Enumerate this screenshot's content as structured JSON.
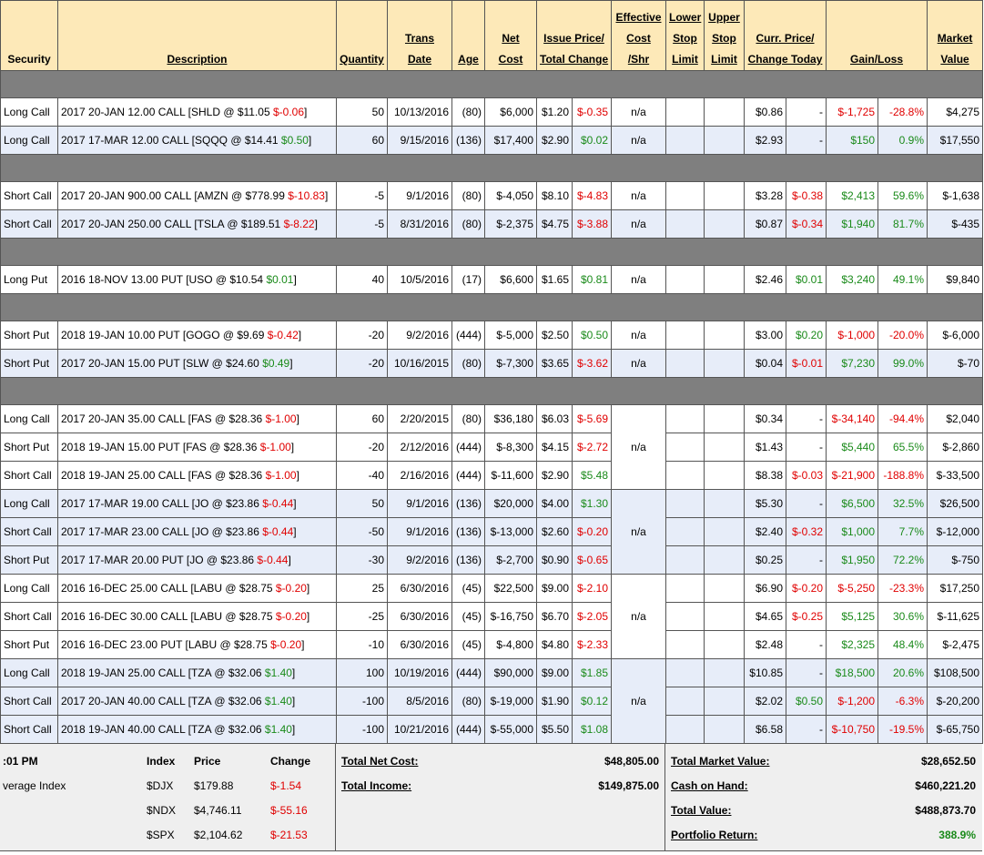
{
  "header": [
    {
      "lines": [
        "Security"
      ]
    },
    {
      "lines": [
        "Description"
      ]
    },
    {
      "lines": [
        "Quantity"
      ]
    },
    {
      "lines": [
        "Trans",
        "Date"
      ]
    },
    {
      "lines": [
        "Age"
      ]
    },
    {
      "lines": [
        "Net",
        "Cost"
      ]
    },
    {
      "lines": [
        "Issue Price/",
        "Total Change"
      ]
    },
    {
      "lines": [
        "Effective",
        "Cost",
        "/Shr"
      ]
    },
    {
      "lines": [
        "Lower",
        "Stop",
        "Limit"
      ]
    },
    {
      "lines": [
        "Upper",
        "Stop",
        "Limit"
      ]
    },
    {
      "lines": [
        "Curr. Price/",
        "Change Today"
      ]
    },
    {
      "lines": [
        "Gain/Loss"
      ]
    },
    {
      "lines": [
        "Market",
        "Value"
      ]
    }
  ],
  "sections": [
    {
      "rows": [
        {
          "security": "Long Call",
          "description": [
            "2017 20-JAN 12.00 CALL [SHLD @ $11.05",
            "$-0.06",
            "]"
          ],
          "quantity": "50",
          "date": "10/13/2016",
          "age": "(80)",
          "net_cost": "$6,000",
          "issue_price": "$1.20",
          "total_change": "$-0.35",
          "effective_cost": "n/a",
          "price": "$0.86",
          "change_today": "-",
          "gain_loss": "$-1,725",
          "gain_pct": "-28.8%",
          "market_value": "$4,275",
          "background": "#ffffff"
        },
        {
          "security": "Long Call",
          "description": [
            "2017 17-MAR 12.00 CALL [SQQQ @ $14.41",
            "$0.50",
            "]"
          ],
          "quantity": "60",
          "date": "9/15/2016",
          "age": "(136)",
          "net_cost": "$17,400",
          "issue_price": "$2.90",
          "total_change": "$0.02",
          "effective_cost": "n/a",
          "price": "$2.93",
          "change_today": "-",
          "gain_loss": "$150",
          "gain_pct": "0.9%",
          "market_value": "$17,550",
          "background": "#e7edf9"
        }
      ]
    },
    {
      "rows": [
        {
          "security": "Short Call",
          "description": [
            "2017 20-JAN 900.00 CALL [AMZN @ $778.99",
            "$-10.83",
            "]"
          ],
          "quantity": "-5",
          "date": "9/1/2016",
          "age": "(80)",
          "net_cost": "$-4,050",
          "issue_price": "$8.10",
          "total_change": "$-4.83",
          "effective_cost": "n/a",
          "price": "$3.28",
          "change_today": "$-0.38",
          "gain_loss": "$2,413",
          "gain_pct": "59.6%",
          "market_value": "$-1,638",
          "background": "#ffffff"
        },
        {
          "security": "Short Call",
          "description": [
            "2017 20-JAN 250.00 CALL [TSLA @ $189.51",
            "$-8.22",
            "]"
          ],
          "quantity": "-5",
          "date": "8/31/2016",
          "age": "(80)",
          "net_cost": "$-2,375",
          "issue_price": "$4.75",
          "total_change": "$-3.88",
          "effective_cost": "n/a",
          "price": "$0.87",
          "change_today": "$-0.34",
          "gain_loss": "$1,940",
          "gain_pct": "81.7%",
          "market_value": "$-435",
          "background": "#e7edf9"
        }
      ]
    },
    {
      "rows": [
        {
          "security": "Long Put",
          "description": [
            "2016 18-NOV 13.00 PUT [USO @ $10.54",
            "$0.01",
            "]"
          ],
          "quantity": "40",
          "date": "10/5/2016",
          "age": "(17)",
          "net_cost": "$6,600",
          "issue_price": "$1.65",
          "total_change": "$0.81",
          "effective_cost": "n/a",
          "price": "$2.46",
          "change_today": "$0.01",
          "gain_loss": "$3,240",
          "gain_pct": "49.1%",
          "market_value": "$9,840",
          "background": "#ffffff"
        }
      ]
    },
    {
      "rows": [
        {
          "security": "Short Put",
          "description": [
            "2018 19-JAN 10.00 PUT [GOGO @ $9.69",
            "$-0.42",
            "]"
          ],
          "quantity": "-20",
          "date": "9/2/2016",
          "age": "(444)",
          "net_cost": "$-5,000",
          "issue_price": "$2.50",
          "total_change": "$0.50",
          "effective_cost": "n/a",
          "price": "$3.00",
          "change_today": "$0.20",
          "gain_loss": "$-1,000",
          "gain_pct": "-20.0%",
          "market_value": "$-6,000",
          "background": "#ffffff"
        },
        {
          "security": "Short Put",
          "description": [
            "2017 20-JAN 15.00 PUT [SLW @ $24.60",
            "$0.49",
            "]"
          ],
          "quantity": "-20",
          "date": "10/16/2015",
          "age": "(80)",
          "net_cost": "$-7,300",
          "issue_price": "$3.65",
          "total_change": "$-3.62",
          "effective_cost": "n/a",
          "price": "$0.04",
          "change_today": "$-0.01",
          "gain_loss": "$7,230",
          "gain_pct": "99.0%",
          "market_value": "$-70",
          "background": "#e7edf9"
        }
      ]
    },
    {
      "rows": [
        {
          "security": "Long Call",
          "description": [
            "2017 20-JAN 35.00 CALL [FAS @ $28.36",
            "$-1.00",
            "]"
          ],
          "quantity": "60",
          "date": "2/20/2015",
          "age": "(80)",
          "net_cost": "$36,180",
          "issue_price": "$6.03",
          "total_change": "$-5.69",
          "effective_cost": "n/a",
          "price": "$0.34",
          "change_today": "-",
          "gain_loss": "$-34,140",
          "gain_pct": "-94.4%",
          "market_value": "$2,040",
          "background": "#ffffff"
        },
        {
          "security": "Short Put",
          "description": [
            "2018 19-JAN 15.00 PUT [FAS @ $28.36",
            "$-1.00",
            "]"
          ],
          "quantity": "-20",
          "date": "2/12/2016",
          "age": "(444)",
          "net_cost": "$-8,300",
          "issue_price": "$4.15",
          "total_change": "$-2.72",
          "price": "$1.43",
          "change_today": "-",
          "gain_loss": "$5,440",
          "gain_pct": "65.5%",
          "market_value": "$-2,860",
          "background": "#ffffff"
        },
        {
          "security": "Short Call",
          "description": [
            "2018 19-JAN 25.00 CALL [FAS @ $28.36",
            "$-1.00",
            "]"
          ],
          "quantity": "-40",
          "date": "2/16/2016",
          "age": "(444)",
          "net_cost": "$-11,600",
          "issue_price": "$2.90",
          "total_change": "$5.48",
          "price": "$8.38",
          "change_today": "$-0.03",
          "gain_loss": "$-21,900",
          "gain_pct": "-188.8%",
          "market_value": "$-33,500",
          "background": "#ffffff"
        },
        {
          "security": "Long Call",
          "description": [
            "2017 17-MAR 19.00 CALL [JO @ $23.86",
            "$-0.44",
            "]"
          ],
          "quantity": "50",
          "date": "9/1/2016",
          "age": "(136)",
          "net_cost": "$20,000",
          "issue_price": "$4.00",
          "total_change": "$1.30",
          "effective_cost": "n/a",
          "price": "$5.30",
          "change_today": "-",
          "gain_loss": "$6,500",
          "gain_pct": "32.5%",
          "market_value": "$26,500",
          "background": "#e7edf9"
        },
        {
          "security": "Short Call",
          "description": [
            "2017 17-MAR 23.00 CALL [JO @ $23.86",
            "$-0.44",
            "]"
          ],
          "quantity": "-50",
          "date": "9/1/2016",
          "age": "(136)",
          "net_cost": "$-13,000",
          "issue_price": "$2.60",
          "total_change": "$-0.20",
          "price": "$2.40",
          "change_today": "$-0.32",
          "gain_loss": "$1,000",
          "gain_pct": "7.7%",
          "market_value": "$-12,000",
          "background": "#e7edf9"
        },
        {
          "security": "Short Put",
          "description": [
            "2017 17-MAR 20.00 PUT [JO @ $23.86",
            "$-0.44",
            "]"
          ],
          "quantity": "-30",
          "date": "9/2/2016",
          "age": "(136)",
          "net_cost": "$-2,700",
          "issue_price": "$0.90",
          "total_change": "$-0.65",
          "price": "$0.25",
          "change_today": "-",
          "gain_loss": "$1,950",
          "gain_pct": "72.2%",
          "market_value": "$-750",
          "background": "#e7edf9"
        },
        {
          "security": "Long Call",
          "description": [
            "2016 16-DEC 25.00 CALL [LABU @ $28.75",
            "$-0.20",
            "]"
          ],
          "quantity": "25",
          "date": "6/30/2016",
          "age": "(45)",
          "net_cost": "$22,500",
          "issue_price": "$9.00",
          "total_change": "$-2.10",
          "effective_cost": "n/a",
          "price": "$6.90",
          "change_today": "$-0.20",
          "gain_loss": "$-5,250",
          "gain_pct": "-23.3%",
          "market_value": "$17,250",
          "background": "#ffffff"
        },
        {
          "security": "Short Call",
          "description": [
            "2016 16-DEC 30.00 CALL [LABU @ $28.75",
            "$-0.20",
            "]"
          ],
          "quantity": "-25",
          "date": "6/30/2016",
          "age": "(45)",
          "net_cost": "$-16,750",
          "issue_price": "$6.70",
          "total_change": "$-2.05",
          "price": "$4.65",
          "change_today": "$-0.25",
          "gain_loss": "$5,125",
          "gain_pct": "30.6%",
          "market_value": "$-11,625",
          "background": "#ffffff"
        },
        {
          "security": "Short Put",
          "description": [
            "2016 16-DEC 23.00 PUT [LABU @ $28.75",
            "$-0.20",
            "]"
          ],
          "quantity": "-10",
          "date": "6/30/2016",
          "age": "(45)",
          "net_cost": "$-4,800",
          "issue_price": "$4.80",
          "total_change": "$-2.33",
          "price": "$2.48",
          "change_today": "-",
          "gain_loss": "$2,325",
          "gain_pct": "48.4%",
          "market_value": "$-2,475",
          "background": "#ffffff"
        },
        {
          "security": "Long Call",
          "description": [
            "2018 19-JAN 25.00 CALL [TZA @ $32.06",
            "$1.40",
            "]"
          ],
          "quantity": "100",
          "date": "10/19/2016",
          "age": "(444)",
          "net_cost": "$90,000",
          "issue_price": "$9.00",
          "total_change": "$1.85",
          "effective_cost": "n/a",
          "price": "$10.85",
          "change_today": "-",
          "gain_loss": "$18,500",
          "gain_pct": "20.6%",
          "market_value": "$108,500",
          "background": "#e7edf9"
        },
        {
          "security": "Short Call",
          "description": [
            "2017 20-JAN 40.00 CALL [TZA @ $32.06",
            "$1.40",
            "]"
          ],
          "quantity": "-100",
          "date": "8/5/2016",
          "age": "(80)",
          "net_cost": "$-19,000",
          "issue_price": "$1.90",
          "total_change": "$0.12",
          "price": "$2.02",
          "change_today": "$0.50",
          "gain_loss": "$-1,200",
          "gain_pct": "-6.3%",
          "market_value": "$-20,200",
          "background": "#e7edf9"
        },
        {
          "security": "Short Call",
          "description": [
            "2018 19-JAN 40.00 CALL [TZA @ $32.06",
            "$1.40",
            "]"
          ],
          "quantity": "-100",
          "date": "10/21/2016",
          "age": "(444)",
          "net_cost": "$-55,000",
          "issue_price": "$5.50",
          "total_change": "$1.08",
          "price": "$6.58",
          "change_today": "-",
          "gain_loss": "$-10,750",
          "gain_pct": "-19.5%",
          "market_value": "$-65,750",
          "background": "#e7edf9"
        }
      ]
    }
  ],
  "footer": {
    "clock": ":01 PM",
    "index_header": [
      "Index",
      "Price",
      "Change"
    ],
    "index_caption": "verage Index",
    "indices": [
      [
        "$DJX",
        "$179.88",
        "$-1.54"
      ],
      [
        "$NDX",
        "$4,746.11",
        "$-55.16"
      ],
      [
        "$SPX",
        "$2,104.62",
        "$-21.53"
      ]
    ],
    "totals": [
      {
        "label": "Total Net Cost:",
        "value": "$48,805.00"
      },
      {
        "label": "Total Income:",
        "value": "$149,875.00"
      }
    ],
    "summary": [
      {
        "label": "Total Market Value:",
        "value": "$28,652.50"
      },
      {
        "label": "Cash on Hand:",
        "value": "$460,221.20"
      },
      {
        "label": "Total Value:",
        "value": "$488,873.70"
      },
      {
        "label": "Portfolio Return:",
        "value": "388.9%",
        "color": "#1a8a1a"
      }
    ]
  }
}
